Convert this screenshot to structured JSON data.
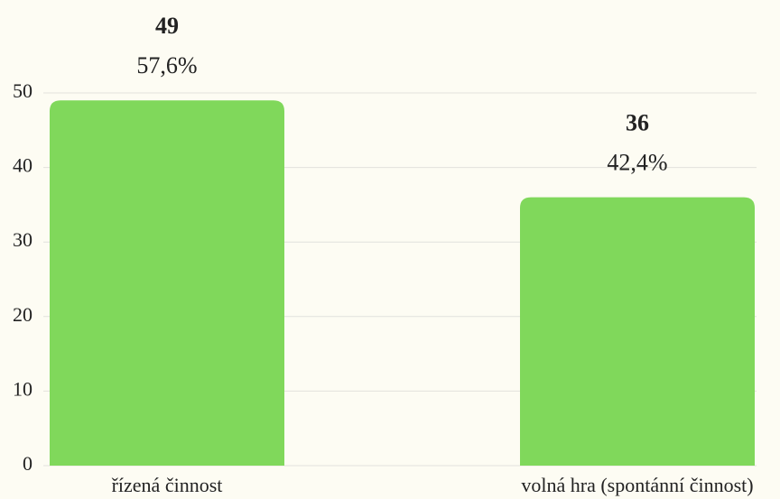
{
  "chart_data": {
    "type": "bar",
    "categories": [
      "řízená činnost",
      "volná hra (spontánní činnost)"
    ],
    "values": [
      49,
      36
    ],
    "shares": {
      "values": [
        57.6,
        42.4
      ],
      "value_labels": [
        "57,6%",
        "42,4%"
      ]
    },
    "color": "#80d85b",
    "ylim": [
      0,
      50
    ],
    "yticks": [
      0,
      10,
      20,
      30,
      40,
      50
    ],
    "grid": true
  }
}
